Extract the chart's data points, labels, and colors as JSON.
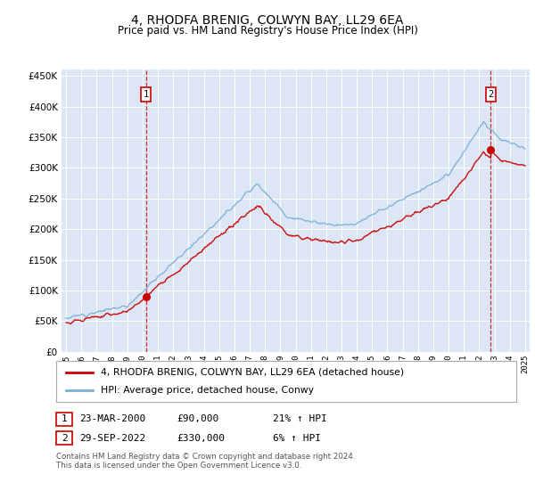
{
  "title": "4, RHODFA BRENIG, COLWYN BAY, LL29 6EA",
  "subtitle": "Price paid vs. HM Land Registry's House Price Index (HPI)",
  "legend_line1": "4, RHODFA BRENIG, COLWYN BAY, LL29 6EA (detached house)",
  "legend_line2": "HPI: Average price, detached house, Conwy",
  "footer": "Contains HM Land Registry data © Crown copyright and database right 2024.\nThis data is licensed under the Open Government Licence v3.0.",
  "sale1_x": 2000.22,
  "sale1_y": 90000,
  "sale2_x": 2022.75,
  "sale2_y": 330000,
  "hpi_color": "#7bafd4",
  "price_color": "#cc0000",
  "background_color": "#dce6f5",
  "ylim": [
    0,
    460000
  ],
  "xlim_start": 1994.7,
  "xlim_end": 2025.3
}
